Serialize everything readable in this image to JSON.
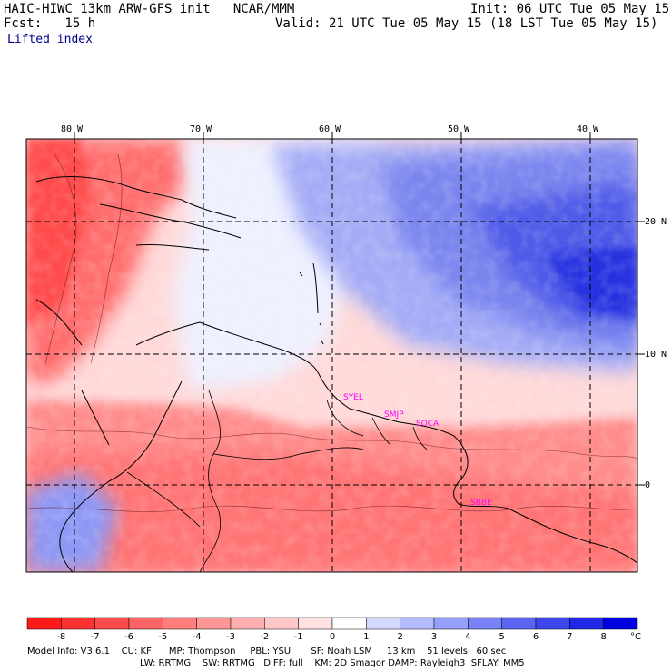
{
  "header": {
    "model_line": "HAIC-HIWC 13km ARW-GFS init   NCAR/MMM",
    "init_line": "Init: 06 UTC Tue 05 May 15",
    "fcst_line": "Fcst:   15 h",
    "valid_line": "Valid: 21 UTC Tue 05 May 15 (18 LST Tue 05 May 15)",
    "field_name": "Lifted index"
  },
  "map": {
    "lon_labels": [
      "80 W",
      "70 W",
      "60 W",
      "50 W",
      "40 W"
    ],
    "lat_labels": [
      "20 N",
      "10 N",
      "0"
    ],
    "cities": [
      "SYEL",
      "SMJP",
      "SOCA",
      "SBBE"
    ]
  },
  "colorbar": {
    "labels": [
      "-8",
      "-7",
      "-6",
      "-5",
      "-4",
      "-3",
      "-2",
      "-1",
      "0",
      "1",
      "2",
      "3",
      "4",
      "5",
      "6",
      "7",
      "8"
    ],
    "unit": "°C",
    "colors": [
      "#ff1a1a",
      "#ff3232",
      "#ff4b4b",
      "#ff6464",
      "#ff7d7d",
      "#ff9696",
      "#ffafaf",
      "#ffc8c8",
      "#ffe1e1",
      "#ffffff",
      "#d4d8ff",
      "#b4bcff",
      "#969ffa",
      "#7882f5",
      "#5a64f0",
      "#3c46eb",
      "#1e28e6",
      "#0000e0"
    ]
  },
  "footer": {
    "line1": "Model Info: V3.6.1    CU: KF      MP: Thompson     PBL: YSU       SF: Noah LSM     13 km    51 levels   60 sec",
    "line2": "LW: RRTMG    SW: RRTMG   DIFF: full    KM: 2D Smagor DAMP: Rayleigh3  SFLAY: MM5"
  }
}
